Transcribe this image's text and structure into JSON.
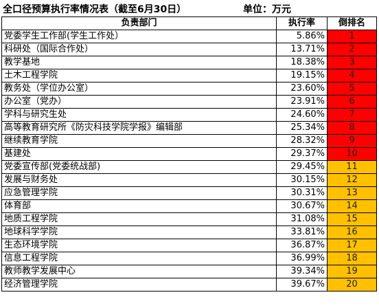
{
  "title": "全口径预算执行率情况表（截至6月30日）",
  "unit_label": "单位：万元",
  "columns": {
    "department": "负责部门",
    "rate": "执行率",
    "rank": "倒排名"
  },
  "colors": {
    "rank_red": "#ff0000",
    "rank_orange": "#ffc000"
  },
  "rows": [
    {
      "department": "党委学生工作部(学生工作处）",
      "rate": "5.86%",
      "rank": "1",
      "highlight": "red"
    },
    {
      "department": "科研处（国际合作处）",
      "rate": "13.71%",
      "rank": "2",
      "highlight": "red"
    },
    {
      "department": "教学基地",
      "rate": "18.38%",
      "rank": "3",
      "highlight": "red"
    },
    {
      "department": "土木工程学院",
      "rate": "19.15%",
      "rank": "4",
      "highlight": "red"
    },
    {
      "department": "教务处（学位办公室）",
      "rate": "23.60%",
      "rank": "5",
      "highlight": "red"
    },
    {
      "department": "办公室（党办）",
      "rate": "23.91%",
      "rank": "6",
      "highlight": "red"
    },
    {
      "department": "学科与研究生处",
      "rate": "24.60%",
      "rank": "7",
      "highlight": "red"
    },
    {
      "department": "高等教育研究所《防灾科技学院学报》编辑部",
      "rate": "25.34%",
      "rank": "8",
      "highlight": "red"
    },
    {
      "department": "继续教育学院",
      "rate": "28.32%",
      "rank": "9",
      "highlight": "red"
    },
    {
      "department": "基建处",
      "rate": "29.37%",
      "rank": "10",
      "highlight": "red"
    },
    {
      "department": "党委宣传部(党委统战部)",
      "rate": "29.45%",
      "rank": "11",
      "highlight": "orange"
    },
    {
      "department": "发展与财务处",
      "rate": "30.15%",
      "rank": "12",
      "highlight": "orange"
    },
    {
      "department": "应急管理学院",
      "rate": "30.31%",
      "rank": "13",
      "highlight": "orange"
    },
    {
      "department": "体育部",
      "rate": "30.67%",
      "rank": "14",
      "highlight": "orange"
    },
    {
      "department": "地质工程学院",
      "rate": "31.08%",
      "rank": "15",
      "highlight": "orange"
    },
    {
      "department": "地球科学学院",
      "rate": "33.81%",
      "rank": "16",
      "highlight": "orange"
    },
    {
      "department": "生态环境学院",
      "rate": "36.87%",
      "rank": "17",
      "highlight": "orange"
    },
    {
      "department": "信息工程学院",
      "rate": "36.99%",
      "rank": "18",
      "highlight": "orange"
    },
    {
      "department": "教师教学发展中心",
      "rate": "39.34%",
      "rank": "19",
      "highlight": "orange"
    },
    {
      "department": "经济管理学院",
      "rate": "39.67%",
      "rank": "20",
      "highlight": "orange"
    }
  ]
}
